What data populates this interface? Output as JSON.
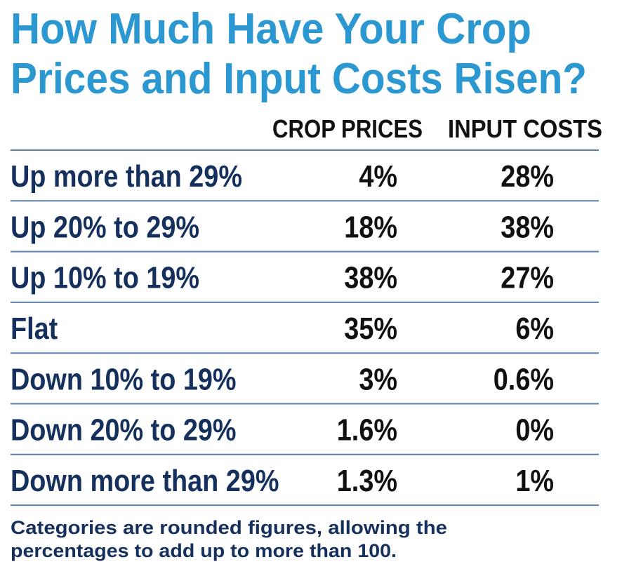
{
  "header": {
    "title_lines": [
      "How Much Have Your Crop",
      "Prices and Input Costs Risen?"
    ]
  },
  "table": {
    "columns": [
      "CROP PRICES",
      "INPUT COSTS"
    ],
    "rows": [
      [
        "Up more than 29%",
        "4%",
        "28%"
      ],
      [
        "Up 20% to 29%",
        "18%",
        "38%"
      ],
      [
        "Up 10% to 19%",
        "38%",
        "27%"
      ],
      [
        "Flat",
        "35%",
        "6%"
      ],
      [
        "Down 10% to 19%",
        "3%",
        "0.6%"
      ],
      [
        "Down 20% to 29%",
        "1.6%",
        "0%"
      ],
      [
        "Down more than 29%",
        "1.3%",
        "1%"
      ]
    ]
  },
  "footnote_lines": [
    "Categories are rounded figures, allowing the",
    "percentages to add up to more than 100."
  ]
}
